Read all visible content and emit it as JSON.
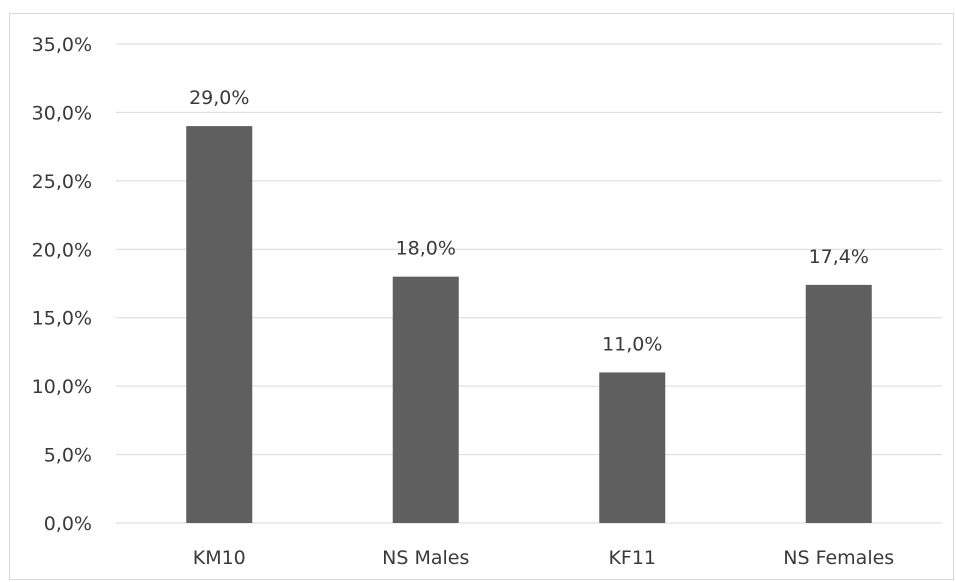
{
  "chart_data": {
    "type": "bar",
    "categories": [
      "KM10",
      "NS Males",
      "KF11",
      "NS Females"
    ],
    "values": [
      29.0,
      18.0,
      11.0,
      17.4
    ],
    "data_labels": [
      "29,0%",
      "18,0%",
      "11,0%",
      "17,4%"
    ],
    "y_ticks": [
      0,
      5,
      10,
      15,
      20,
      25,
      30,
      35
    ],
    "y_tick_labels": [
      "0,0%",
      "5,0%",
      "10,0%",
      "15,0%",
      "20,0%",
      "25,0%",
      "30,0%",
      "35,0%"
    ],
    "ylim": [
      0,
      35
    ],
    "grid": true,
    "legend": "none",
    "title": "",
    "xlabel": "",
    "ylabel": "",
    "colors": {
      "bar": "#5f5f5f",
      "grid": "#d9d9d9",
      "text": "#3a3a3a"
    }
  }
}
